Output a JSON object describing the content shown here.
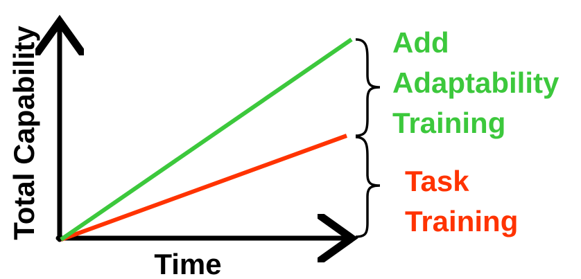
{
  "diagram": {
    "axes": {
      "y_label": "Total Capability",
      "x_label": "Time"
    },
    "series": [
      {
        "key": "adaptability",
        "label_lines": [
          "Add",
          "Adaptability",
          "Training"
        ],
        "color": "#3cc83c"
      },
      {
        "key": "task",
        "label_lines": [
          "Task",
          "Training"
        ],
        "color": "#ff3300"
      }
    ],
    "axis_color": "#000000"
  }
}
